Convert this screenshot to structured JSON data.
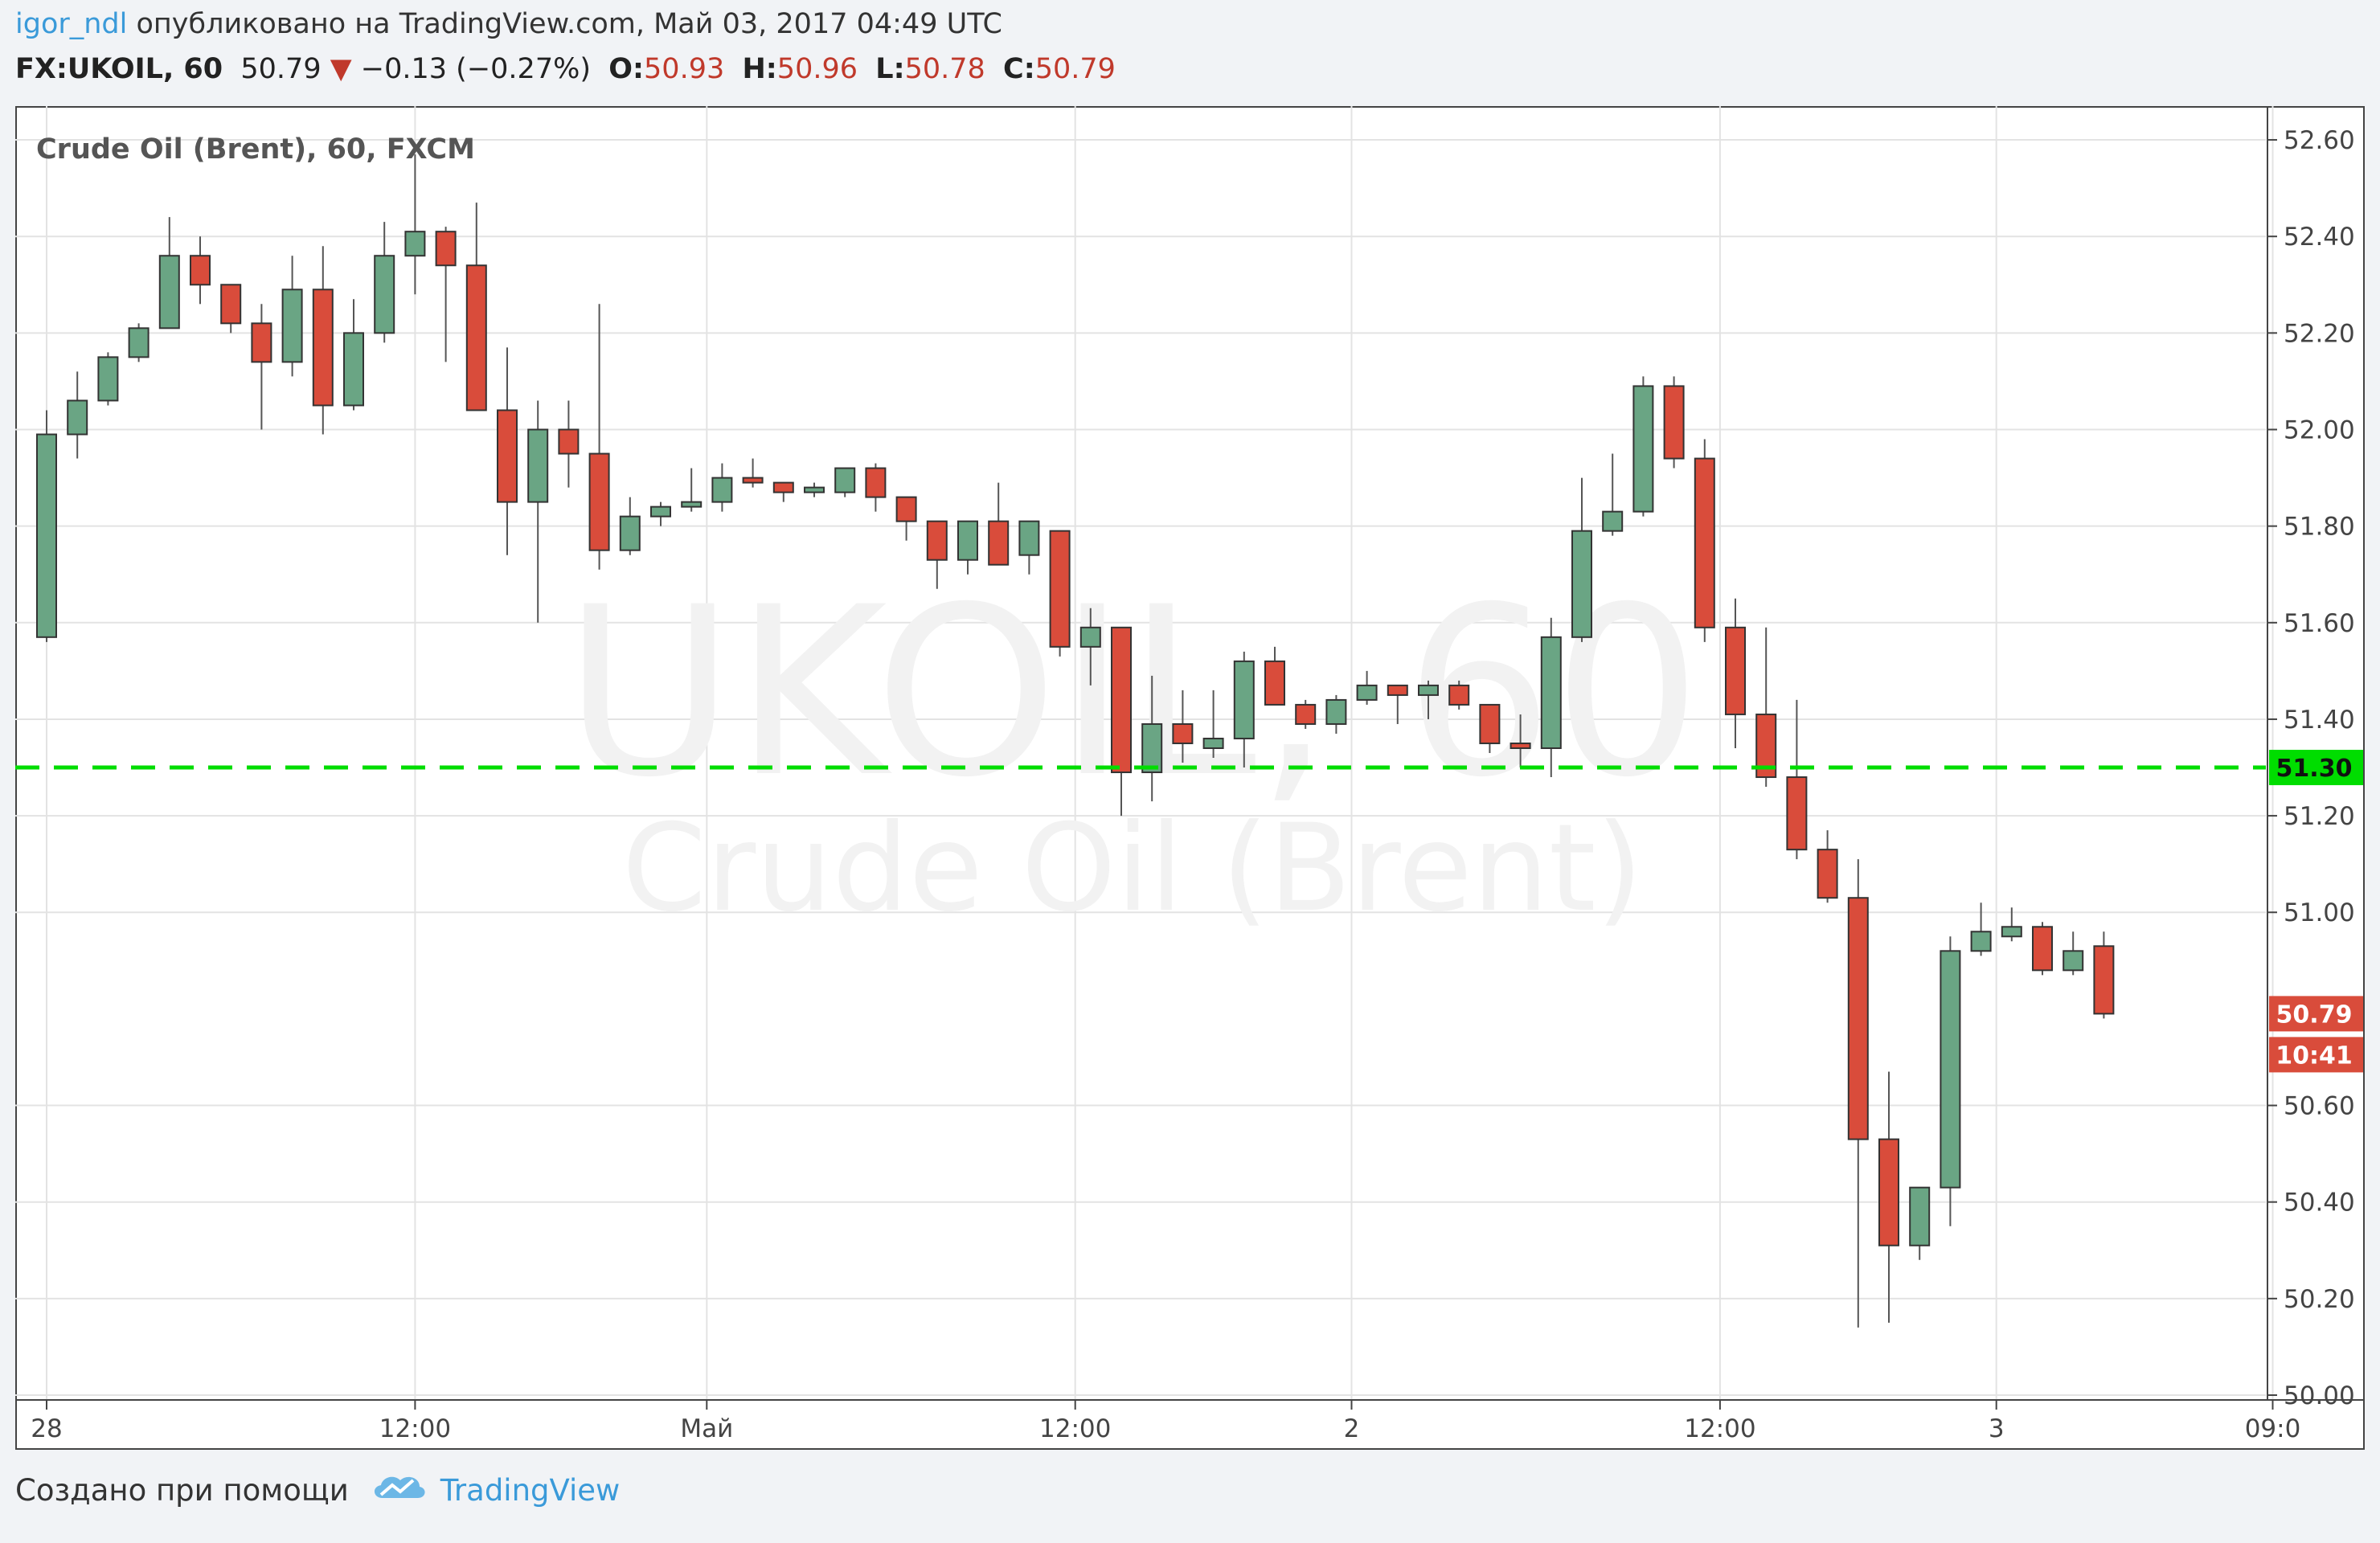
{
  "header": {
    "author": "igor_ndl",
    "published_text": " опубликовано на TradingView.com, Май 03, 2017 04:49 UTC",
    "symbol": "FX:UKOIL, 60",
    "last": "50.79",
    "change": "−0.13 (−0.27%)",
    "open_label": "O:",
    "open": "50.93",
    "high_label": "H:",
    "high": "50.96",
    "low_label": "L:",
    "low": "50.78",
    "close_label": "C:",
    "close": "50.79",
    "down_arrow_icon": "triangle-down-icon"
  },
  "footer": {
    "created_with": "Создано при помощи",
    "logo_icon": "tradingview-cloud-icon",
    "brand": "TradingView"
  },
  "colors": {
    "up": "#4f9a6e",
    "up_fill": "#6aa584",
    "down": "#d94c3b",
    "line_level": "#00dd00",
    "grid": "#e3e3e3",
    "accent": "#3a9ad9"
  },
  "chart_data": {
    "type": "candlestick",
    "title": "Crude Oil (Brent), 60, FXCM",
    "watermark_symbol": "UKOIL, 60",
    "watermark_name": "Crude Oil (Brent)",
    "ylim": [
      49.99,
      52.67
    ],
    "y_ticks": [
      "52.60",
      "52.40",
      "52.20",
      "52.00",
      "51.80",
      "51.60",
      "51.40",
      "51.20",
      "51.00",
      "50.60",
      "50.40",
      "50.20",
      "50.00"
    ],
    "x_tick_labels": [
      {
        "label": "28",
        "bar": 0
      },
      {
        "label": "12:00",
        "bar": 12
      },
      {
        "label": "Май",
        "bar": 21.5
      },
      {
        "label": "12:00",
        "bar": 33.5
      },
      {
        "label": "2",
        "bar": 42.5
      },
      {
        "label": "12:00",
        "bar": 54.5
      },
      {
        "label": "3",
        "bar": 63.5
      },
      {
        "label": "09:0",
        "bar": 72.5
      }
    ],
    "horizontal_level": {
      "value": 51.3,
      "label": "51.30",
      "style": "dashed",
      "color": "#00dd00"
    },
    "last_price_label": "50.79",
    "countdown_label": "10:41",
    "candles": [
      {
        "o": 51.57,
        "h": 52.04,
        "l": 51.56,
        "c": 51.99
      },
      {
        "o": 51.99,
        "h": 52.12,
        "l": 51.94,
        "c": 52.06
      },
      {
        "o": 52.06,
        "h": 52.16,
        "l": 52.05,
        "c": 52.15
      },
      {
        "o": 52.15,
        "h": 52.22,
        "l": 52.14,
        "c": 52.21
      },
      {
        "o": 52.21,
        "h": 52.44,
        "l": 52.21,
        "c": 52.36
      },
      {
        "o": 52.36,
        "h": 52.4,
        "l": 52.26,
        "c": 52.3
      },
      {
        "o": 52.3,
        "h": 52.3,
        "l": 52.2,
        "c": 52.22
      },
      {
        "o": 52.22,
        "h": 52.26,
        "l": 52.0,
        "c": 52.14
      },
      {
        "o": 52.14,
        "h": 52.36,
        "l": 52.11,
        "c": 52.29
      },
      {
        "o": 52.29,
        "h": 52.38,
        "l": 51.99,
        "c": 52.05
      },
      {
        "o": 52.05,
        "h": 52.27,
        "l": 52.04,
        "c": 52.2
      },
      {
        "o": 52.2,
        "h": 52.43,
        "l": 52.18,
        "c": 52.36
      },
      {
        "o": 52.36,
        "h": 52.57,
        "l": 52.28,
        "c": 52.41
      },
      {
        "o": 52.41,
        "h": 52.42,
        "l": 52.14,
        "c": 52.34
      },
      {
        "o": 52.34,
        "h": 52.47,
        "l": 52.04,
        "c": 52.04
      },
      {
        "o": 52.04,
        "h": 52.17,
        "l": 51.74,
        "c": 51.85
      },
      {
        "o": 51.85,
        "h": 52.06,
        "l": 51.6,
        "c": 52.0
      },
      {
        "o": 52.0,
        "h": 52.06,
        "l": 51.88,
        "c": 51.95
      },
      {
        "o": 51.95,
        "h": 52.26,
        "l": 51.71,
        "c": 51.75
      },
      {
        "o": 51.75,
        "h": 51.86,
        "l": 51.74,
        "c": 51.82
      },
      {
        "o": 51.82,
        "h": 51.85,
        "l": 51.8,
        "c": 51.84
      },
      {
        "o": 51.84,
        "h": 51.92,
        "l": 51.83,
        "c": 51.85
      },
      {
        "o": 51.85,
        "h": 51.93,
        "l": 51.83,
        "c": 51.9
      },
      {
        "o": 51.9,
        "h": 51.94,
        "l": 51.88,
        "c": 51.89
      },
      {
        "o": 51.89,
        "h": 51.89,
        "l": 51.85,
        "c": 51.87
      },
      {
        "o": 51.87,
        "h": 51.89,
        "l": 51.86,
        "c": 51.88
      },
      {
        "o": 51.87,
        "h": 51.92,
        "l": 51.86,
        "c": 51.92
      },
      {
        "o": 51.92,
        "h": 51.93,
        "l": 51.83,
        "c": 51.86
      },
      {
        "o": 51.86,
        "h": 51.86,
        "l": 51.77,
        "c": 51.81
      },
      {
        "o": 51.81,
        "h": 51.81,
        "l": 51.67,
        "c": 51.73
      },
      {
        "o": 51.73,
        "h": 51.81,
        "l": 51.7,
        "c": 51.81
      },
      {
        "o": 51.81,
        "h": 51.89,
        "l": 51.72,
        "c": 51.72
      },
      {
        "o": 51.74,
        "h": 51.81,
        "l": 51.7,
        "c": 51.81
      },
      {
        "o": 51.79,
        "h": 51.79,
        "l": 51.53,
        "c": 51.55
      },
      {
        "o": 51.55,
        "h": 51.63,
        "l": 51.47,
        "c": 51.59
      },
      {
        "o": 51.59,
        "h": 51.59,
        "l": 51.2,
        "c": 51.29
      },
      {
        "o": 51.29,
        "h": 51.49,
        "l": 51.23,
        "c": 51.39
      },
      {
        "o": 51.39,
        "h": 51.46,
        "l": 51.31,
        "c": 51.35
      },
      {
        "o": 51.34,
        "h": 51.46,
        "l": 51.32,
        "c": 51.36
      },
      {
        "o": 51.36,
        "h": 51.54,
        "l": 51.3,
        "c": 51.52
      },
      {
        "o": 51.52,
        "h": 51.55,
        "l": 51.43,
        "c": 51.43
      },
      {
        "o": 51.43,
        "h": 51.44,
        "l": 51.38,
        "c": 51.39
      },
      {
        "o": 51.39,
        "h": 51.45,
        "l": 51.37,
        "c": 51.44
      },
      {
        "o": 51.44,
        "h": 51.5,
        "l": 51.43,
        "c": 51.47
      },
      {
        "o": 51.47,
        "h": 51.47,
        "l": 51.39,
        "c": 51.45
      },
      {
        "o": 51.45,
        "h": 51.48,
        "l": 51.4,
        "c": 51.47
      },
      {
        "o": 51.47,
        "h": 51.48,
        "l": 51.42,
        "c": 51.43
      },
      {
        "o": 51.43,
        "h": 51.43,
        "l": 51.33,
        "c": 51.35
      },
      {
        "o": 51.35,
        "h": 51.41,
        "l": 51.3,
        "c": 51.34
      },
      {
        "o": 51.34,
        "h": 51.61,
        "l": 51.28,
        "c": 51.57
      },
      {
        "o": 51.57,
        "h": 51.9,
        "l": 51.56,
        "c": 51.79
      },
      {
        "o": 51.79,
        "h": 51.95,
        "l": 51.78,
        "c": 51.83
      },
      {
        "o": 51.83,
        "h": 52.11,
        "l": 51.82,
        "c": 52.09
      },
      {
        "o": 52.09,
        "h": 52.11,
        "l": 51.92,
        "c": 51.94
      },
      {
        "o": 51.94,
        "h": 51.98,
        "l": 51.56,
        "c": 51.59
      },
      {
        "o": 51.59,
        "h": 51.65,
        "l": 51.34,
        "c": 51.41
      },
      {
        "o": 51.41,
        "h": 51.59,
        "l": 51.26,
        "c": 51.28
      },
      {
        "o": 51.28,
        "h": 51.44,
        "l": 51.11,
        "c": 51.13
      },
      {
        "o": 51.13,
        "h": 51.17,
        "l": 51.02,
        "c": 51.03
      },
      {
        "o": 51.03,
        "h": 51.11,
        "l": 50.14,
        "c": 50.53
      },
      {
        "o": 50.53,
        "h": 50.67,
        "l": 50.15,
        "c": 50.31
      },
      {
        "o": 50.31,
        "h": 50.43,
        "l": 50.28,
        "c": 50.43
      },
      {
        "o": 50.43,
        "h": 50.95,
        "l": 50.35,
        "c": 50.92
      },
      {
        "o": 50.92,
        "h": 51.02,
        "l": 50.91,
        "c": 50.96
      },
      {
        "o": 50.95,
        "h": 51.01,
        "l": 50.94,
        "c": 50.97
      },
      {
        "o": 50.97,
        "h": 50.98,
        "l": 50.87,
        "c": 50.88
      },
      {
        "o": 50.88,
        "h": 50.96,
        "l": 50.87,
        "c": 50.92
      },
      {
        "o": 50.93,
        "h": 50.96,
        "l": 50.78,
        "c": 50.79
      }
    ]
  }
}
